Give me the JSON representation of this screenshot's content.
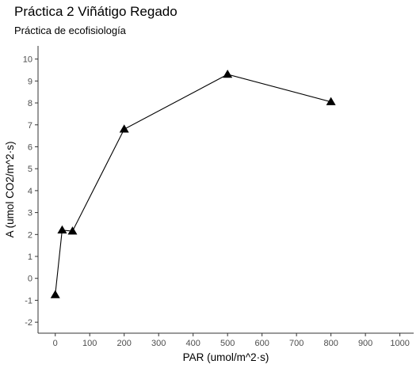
{
  "chart_data": {
    "type": "line",
    "title": "Práctica 2 Viñátigo Regado",
    "subtitle": "Práctica de ecofisiología",
    "xlabel": "PAR (umol/m^2·s)",
    "ylabel": "A (umol CO2/m^2·s)",
    "xlim": [
      -50,
      1040
    ],
    "ylim": [
      -2.5,
      10.6
    ],
    "x_ticks": [
      0,
      100,
      200,
      300,
      400,
      500,
      600,
      700,
      800,
      900,
      1000
    ],
    "y_ticks": [
      -2,
      -1,
      0,
      1,
      2,
      3,
      4,
      5,
      6,
      7,
      8,
      9,
      10
    ],
    "grid": false,
    "marker": "triangle",
    "series": [
      {
        "x": [
          0,
          20,
          50,
          200,
          500,
          800
        ],
        "y": [
          -0.75,
          2.2,
          2.15,
          6.8,
          9.3,
          8.05
        ]
      }
    ],
    "colors": {
      "line": "#000000",
      "marker": "#000000",
      "axis": "#333333",
      "tick_label": "#4d4d4d"
    }
  }
}
